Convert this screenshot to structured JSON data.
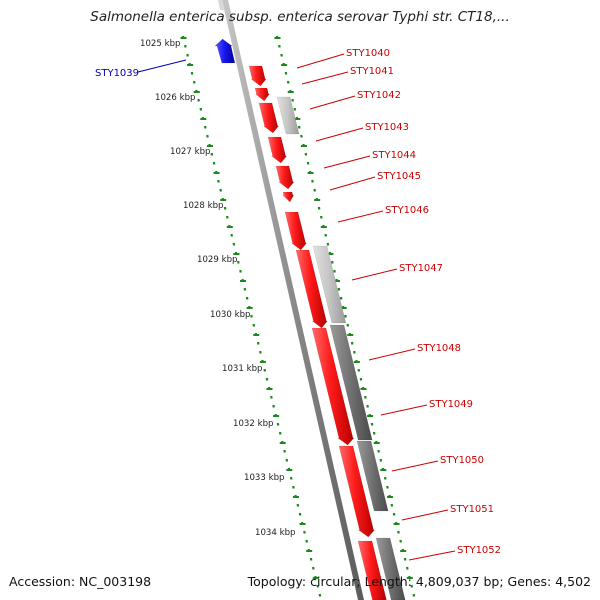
{
  "title": "Salmonella enterica subsp. enterica serovar Typhi str. CT18,...",
  "footer": {
    "accession": "Accession: NC_003198",
    "topology": "Topology: circular; Length: 4,809,037 bp; Genes: 4,502"
  },
  "colors": {
    "gene_forward": "#ee1111",
    "gene_reverse": "#1111dd",
    "gene_light": "#c4c4c4",
    "gene_dark": "#707070",
    "ruler": "#1a8a1a",
    "label_forward": "#cc0000",
    "label_reverse": "#0000bb"
  },
  "kbp_labels": [
    "1025 kbp",
    "1026 kbp",
    "1027 kbp",
    "1028 kbp",
    "1029 kbp",
    "1030 kbp",
    "1031 kbp",
    "1032 kbp",
    "1033 kbp",
    "1034 kbp"
  ],
  "genes": [
    {
      "name": "STY1039",
      "strand": "reverse",
      "color": "blue"
    },
    {
      "name": "STY1040",
      "strand": "forward",
      "color": "red"
    },
    {
      "name": "STY1041",
      "strand": "forward",
      "color": "red"
    },
    {
      "name": "STY1042",
      "strand": "forward",
      "color": "light"
    },
    {
      "name": "STY1043",
      "strand": "forward",
      "color": "red"
    },
    {
      "name": "STY1044",
      "strand": "forward",
      "color": "red"
    },
    {
      "name": "STY1045",
      "strand": "forward",
      "color": "red"
    },
    {
      "name": "STY1046",
      "strand": "forward",
      "color": "red"
    },
    {
      "name": "STY1047",
      "strand": "forward",
      "color": "light"
    },
    {
      "name": "STY1048",
      "strand": "forward",
      "color": "dark"
    },
    {
      "name": "STY1049",
      "strand": "forward",
      "color": "red"
    },
    {
      "name": "STY1050",
      "strand": "forward",
      "color": "dark"
    },
    {
      "name": "STY1051",
      "strand": "forward",
      "color": "red"
    },
    {
      "name": "STY1052",
      "strand": "forward",
      "color": "dark"
    }
  ]
}
